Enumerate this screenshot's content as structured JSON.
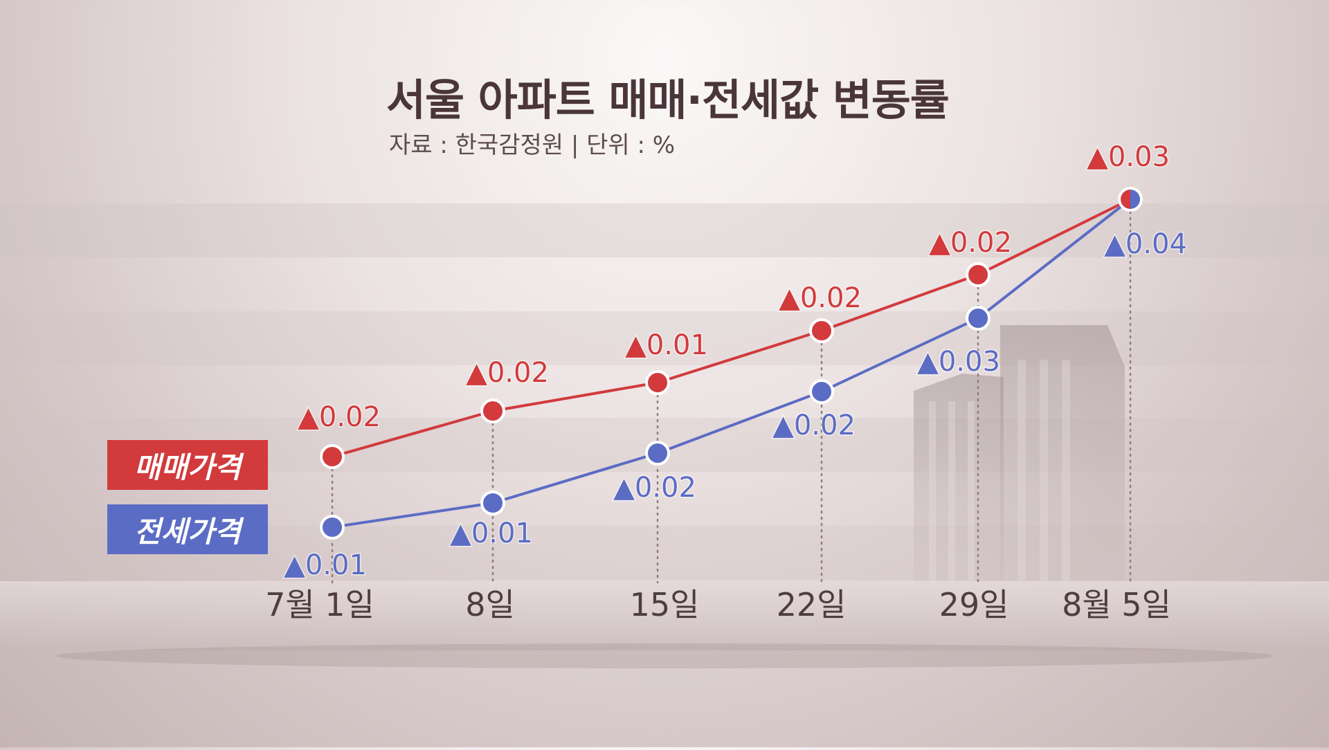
{
  "title": "서울 아파트 매매·전세값 변동률",
  "subtitle": "자료 : 한국감정원 | 단위 : %",
  "legend": {
    "sale": "매매가격",
    "jeonse": "전세가격"
  },
  "colors": {
    "sale": "#d23a3c",
    "jeonse": "#5b6cc4",
    "axis_text": "#4e3c40"
  },
  "chart_data": {
    "type": "line",
    "x_labels": [
      "7월 1일",
      "8일",
      "15일",
      "22일",
      "29일",
      "8월 5일"
    ],
    "series": [
      {
        "name": "매매가격",
        "values": [
          0.02,
          0.02,
          0.01,
          0.02,
          0.02,
          0.03
        ],
        "labels": [
          "▲0.02",
          "▲0.02",
          "▲0.01",
          "▲0.02",
          "▲0.02",
          "▲0.03"
        ]
      },
      {
        "name": "전세가격",
        "values": [
          0.01,
          0.01,
          0.02,
          0.02,
          0.03,
          0.04
        ],
        "labels": [
          "▲0.01",
          "▲0.01",
          "▲0.02",
          "▲0.02",
          "▲0.03",
          "▲0.04"
        ]
      }
    ],
    "grid": false,
    "legend_position": "left"
  }
}
